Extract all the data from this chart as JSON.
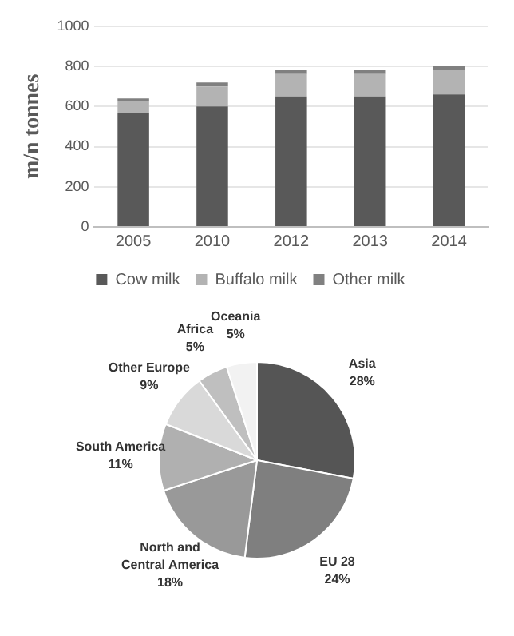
{
  "chart_data": [
    {
      "type": "bar",
      "ylabel": "m/n tonnes",
      "categories": [
        "2005",
        "2010",
        "2012",
        "2013",
        "2014"
      ],
      "stacked": true,
      "series": [
        {
          "name": "Cow milk",
          "color": "#595959",
          "values": [
            565,
            600,
            650,
            650,
            660
          ]
        },
        {
          "name": "Buffalo milk",
          "color": "#b3b3b3",
          "values": [
            60,
            100,
            115,
            115,
            120
          ]
        },
        {
          "name": "Other milk",
          "color": "#808080",
          "values": [
            15,
            20,
            15,
            15,
            20
          ]
        }
      ],
      "ylim": [
        0,
        1000
      ],
      "yticks": [
        0,
        200,
        400,
        600,
        800,
        1000
      ],
      "grid": "y",
      "legend": "bottom"
    },
    {
      "type": "pie",
      "categories": [
        "Asia",
        "EU 28",
        "North and Central America",
        "South America",
        "Other Europe",
        "Africa",
        "Oceania"
      ],
      "values": [
        28,
        24,
        18,
        11,
        9,
        5,
        5
      ],
      "colors": [
        "#555555",
        "#7f7f7f",
        "#999999",
        "#b0b0b0",
        "#d9d9d9",
        "#bfbfbf",
        "#f2f2f2"
      ],
      "value_labels": [
        "28%",
        "24%",
        "18%",
        "11%",
        "9%",
        "5%",
        "5%"
      ]
    }
  ]
}
